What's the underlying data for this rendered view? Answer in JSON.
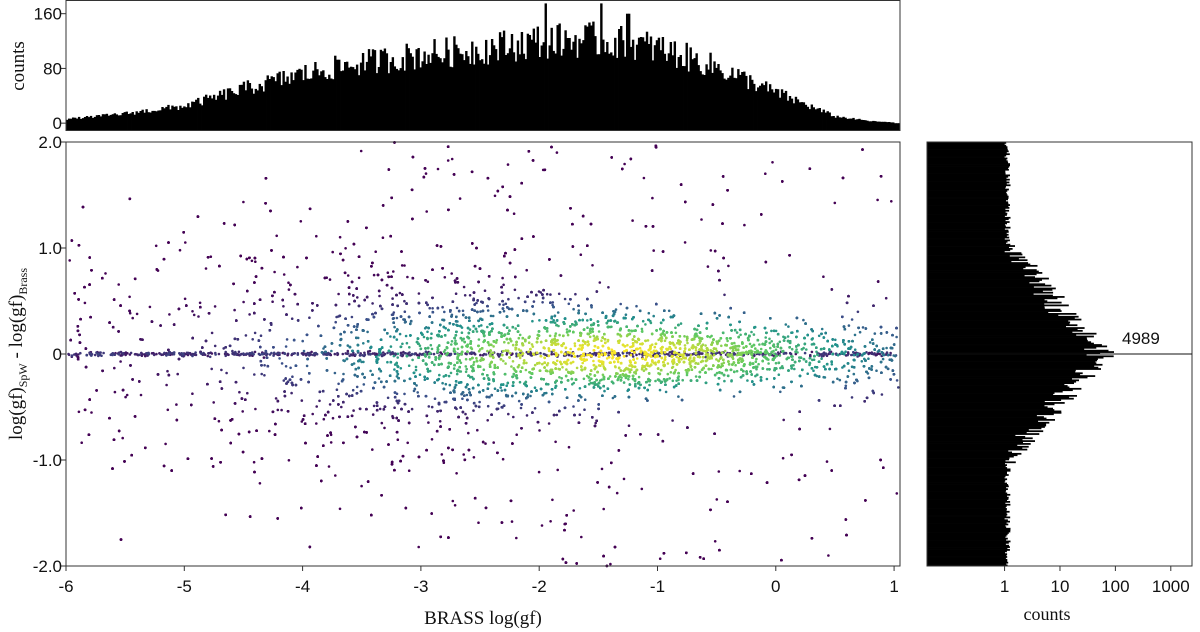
{
  "chart_data": [
    {
      "type": "bar",
      "panel": "top-histogram",
      "ylabel": "counts",
      "ylim": [
        -10,
        180
      ],
      "y_ticks": [
        0,
        80,
        160
      ],
      "y_tick_labels": [
        "0",
        "80",
        "160"
      ],
      "x_range": [
        -6,
        1.05
      ],
      "profile": {
        "description_peak_x": -1.6,
        "points": [
          [
            -6.0,
            6
          ],
          [
            -5.8,
            9
          ],
          [
            -5.5,
            14
          ],
          [
            -5.0,
            25
          ],
          [
            -4.5,
            50
          ],
          [
            -4.0,
            72
          ],
          [
            -3.5,
            88
          ],
          [
            -3.0,
            100
          ],
          [
            -2.5,
            108
          ],
          [
            -2.0,
            120
          ],
          [
            -1.5,
            122
          ],
          [
            -1.0,
            110
          ],
          [
            -0.5,
            82
          ],
          [
            0.0,
            45
          ],
          [
            0.5,
            10
          ],
          [
            0.8,
            3
          ],
          [
            1.0,
            1
          ]
        ],
        "spikes": [
          [
            -1.95,
            175
          ],
          [
            -1.48,
            175
          ],
          [
            -1.25,
            160
          ]
        ]
      }
    },
    {
      "type": "scatter",
      "panel": "main-scatter",
      "xlabel": "BRASS log(gf)",
      "ylabel": {
        "base": "log(gf)",
        "sub1": "SpW",
        "mid": " - log(gf)",
        "sub2": "Brass"
      },
      "xlim": [
        -6,
        1.05
      ],
      "ylim": [
        -2.0,
        2.0
      ],
      "x_ticks": [
        -6,
        -5,
        -4,
        -3,
        -2,
        -1,
        0,
        1
      ],
      "x_tick_labels": [
        "-6",
        "-5",
        "-4",
        "-3",
        "-2",
        "-1",
        "0",
        "1"
      ],
      "y_ticks": [
        2.0,
        1.0,
        0,
        -1.0,
        -2.0
      ],
      "y_tick_labels": [
        "2.0",
        "1.0",
        "0",
        "-1.0",
        "-2.0"
      ],
      "colormap": [
        "#440154",
        "#3b528b",
        "#21918c",
        "#5ec962",
        "#fde725"
      ],
      "density_peak": {
        "x": -1.4,
        "y": 0.0
      },
      "point_count": 9000
    },
    {
      "type": "bar",
      "panel": "right-histogram",
      "orientation": "horizontal",
      "xlabel": "counts",
      "x_scale": "log",
      "x_ticks": [
        1,
        10,
        100,
        1000
      ],
      "x_tick_labels": [
        "1",
        "10",
        "100",
        "1000"
      ],
      "ylim": [
        -2.0,
        2.0
      ],
      "peak": {
        "y": 0.0,
        "count": 4989
      },
      "annotation": "4989"
    }
  ]
}
